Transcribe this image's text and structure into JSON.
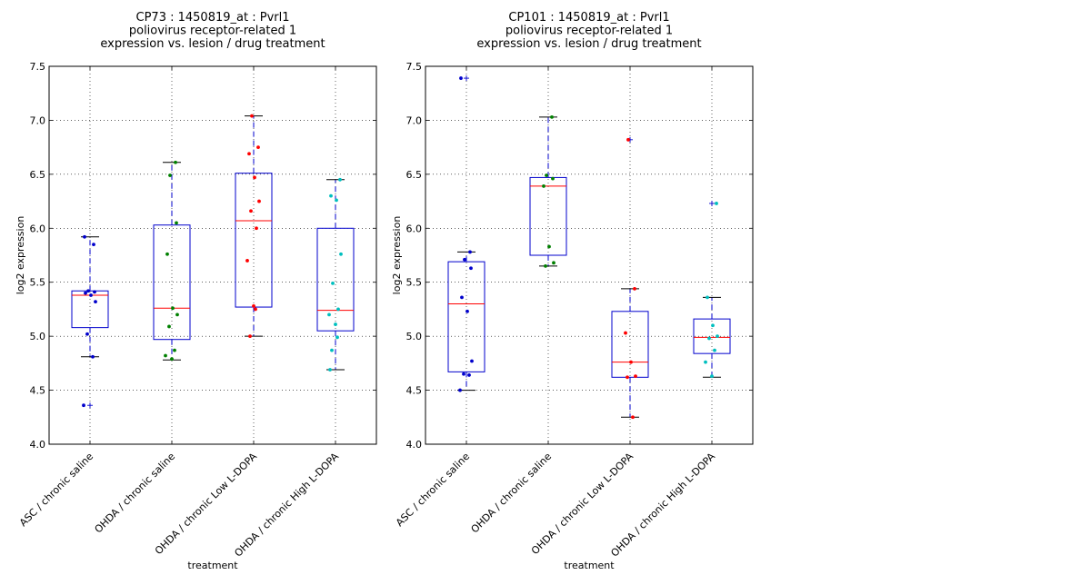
{
  "chart_data": [
    {
      "type": "box",
      "title_lines": [
        "CP73 : 1450819_at : Pvrl1",
        "poliovirus receptor-related 1",
        "expression vs. lesion / drug treatment"
      ],
      "xlabel": "treatment",
      "ylabel": "log2 expression",
      "ylim": [
        4.0,
        7.5
      ],
      "yticks": [
        "4.0",
        "4.5",
        "5.0",
        "5.5",
        "6.0",
        "6.5",
        "7.0",
        "7.5"
      ],
      "grid": true,
      "categories": [
        "ASC / chronic saline",
        "OHDA / chronic saline",
        "OHDA / chronic Low L-DOPA",
        "OHDA / chronic High L-DOPA"
      ],
      "series": [
        {
          "color": "#0000cc",
          "whisker_low": 4.81,
          "q1": 5.08,
          "median": 5.38,
          "q3": 5.42,
          "whisker_high": 5.92,
          "outliers": [
            4.36
          ],
          "points": [
            5.92,
            5.85,
            5.42,
            5.41,
            5.4,
            5.38,
            5.32,
            5.02,
            4.81,
            4.36
          ]
        },
        {
          "color": "#008000",
          "whisker_low": 4.78,
          "q1": 4.97,
          "median": 5.26,
          "q3": 6.03,
          "whisker_high": 6.61,
          "outliers": [],
          "points": [
            6.61,
            6.49,
            6.05,
            5.76,
            5.26,
            5.2,
            5.09,
            4.87,
            4.82,
            4.79
          ]
        },
        {
          "color": "#ff0000",
          "whisker_low": 5.0,
          "q1": 5.27,
          "median": 6.07,
          "q3": 6.51,
          "whisker_high": 7.04,
          "outliers": [],
          "points": [
            7.04,
            6.75,
            6.69,
            6.47,
            6.25,
            6.16,
            6.0,
            5.7,
            5.28,
            5.25,
            5.0
          ]
        },
        {
          "color": "#00bfbf",
          "whisker_low": 4.69,
          "q1": 5.05,
          "median": 5.24,
          "q3": 6.0,
          "whisker_high": 6.45,
          "outliers": [],
          "points": [
            6.45,
            6.3,
            6.26,
            5.76,
            5.49,
            5.25,
            5.2,
            5.11,
            4.99,
            4.87,
            4.69
          ]
        }
      ]
    },
    {
      "type": "box",
      "title_lines": [
        "CP101 : 1450819_at : Pvrl1",
        "poliovirus receptor-related 1",
        "expression vs. lesion / drug treatment"
      ],
      "xlabel": "treatment",
      "ylabel": "log2 expression",
      "ylim": [
        4.0,
        7.5
      ],
      "yticks": [
        "4.0",
        "4.5",
        "5.0",
        "5.5",
        "6.0",
        "6.5",
        "7.0",
        "7.5"
      ],
      "grid": true,
      "categories": [
        "ASC / chronic saline",
        "OHDA / chronic saline",
        "OHDA / chronic Low L-DOPA",
        "OHDA / chronic High L-DOPA"
      ],
      "series": [
        {
          "color": "#0000cc",
          "whisker_low": 4.5,
          "q1": 4.67,
          "median": 5.3,
          "q3": 5.69,
          "whisker_high": 5.78,
          "outliers": [
            7.39
          ],
          "points": [
            7.39,
            5.78,
            5.71,
            5.63,
            5.36,
            5.23,
            4.77,
            4.65,
            4.64,
            4.5
          ]
        },
        {
          "color": "#008000",
          "whisker_low": 5.65,
          "q1": 5.75,
          "median": 6.39,
          "q3": 6.47,
          "whisker_high": 7.03,
          "outliers": [],
          "points": [
            7.03,
            6.49,
            6.46,
            6.39,
            5.83,
            5.68,
            5.65
          ]
        },
        {
          "color": "#ff0000",
          "whisker_low": 4.25,
          "q1": 4.62,
          "median": 4.76,
          "q3": 5.23,
          "whisker_high": 5.44,
          "outliers": [
            6.82
          ],
          "points": [
            6.82,
            5.44,
            5.03,
            4.76,
            4.63,
            4.62,
            4.25
          ]
        },
        {
          "color": "#00bfbf",
          "whisker_low": 4.62,
          "q1": 4.84,
          "median": 4.99,
          "q3": 5.16,
          "whisker_high": 5.36,
          "outliers": [
            6.23
          ],
          "points": [
            6.23,
            5.36,
            5.1,
            5.0,
            4.98,
            4.87,
            4.76,
            4.63
          ]
        }
      ]
    }
  ]
}
